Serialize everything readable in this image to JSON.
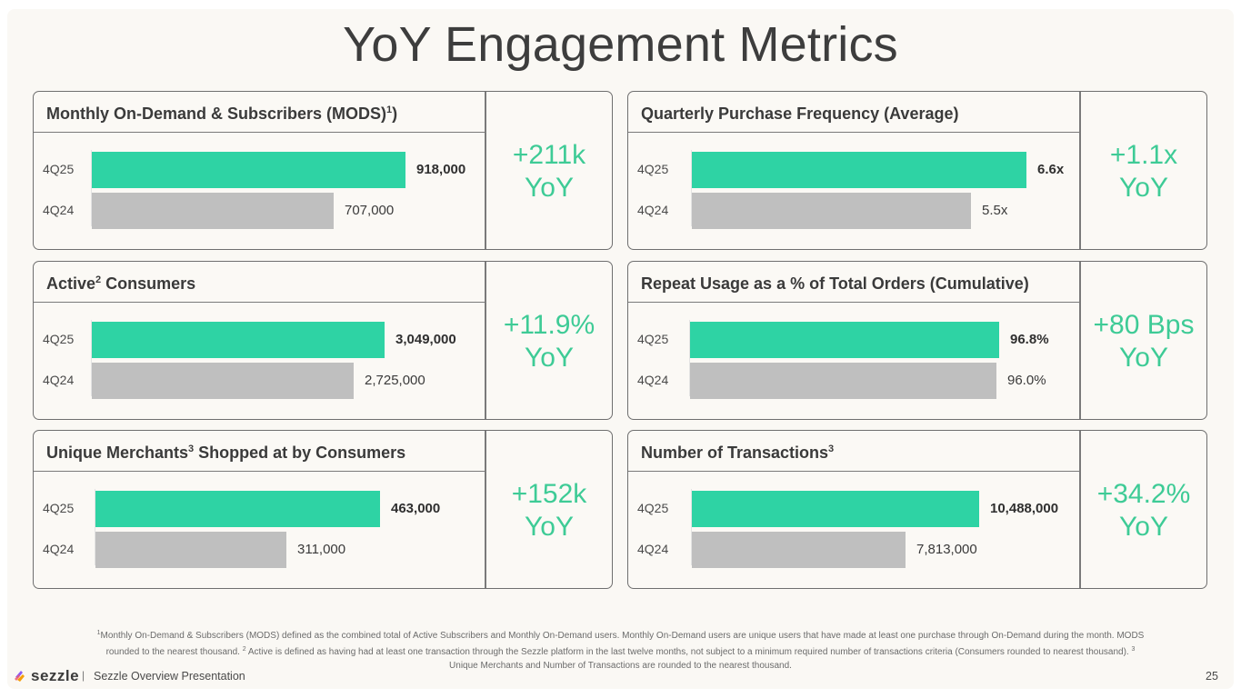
{
  "title": "YoY Engagement Metrics",
  "colors": {
    "current": "#2ed3a4",
    "previous": "#bfbfbf",
    "yoy": "#3ecb96"
  },
  "chart_data": [
    {
      "type": "bar",
      "title": "Monthly On-Demand & Subscribers (MODS)",
      "title_sup": "1",
      "title_after": ")",
      "categories": [
        "4Q25",
        "4Q24"
      ],
      "values": [
        918000,
        707000
      ],
      "labels": [
        "918,000",
        "707,000"
      ],
      "yoy_line1": "+211k",
      "yoy_line2": "YoY"
    },
    {
      "type": "bar",
      "title": "Quarterly Purchase Frequency (Average)",
      "title_sup": "",
      "title_after": "",
      "categories": [
        "4Q25",
        "4Q24"
      ],
      "values": [
        6.6,
        5.5
      ],
      "labels": [
        "6.6x",
        "5.5x"
      ],
      "yoy_line1": "+1.1x",
      "yoy_line2": "YoY"
    },
    {
      "type": "bar",
      "title": "Active",
      "title_sup": "2",
      "title_after": " Consumers",
      "categories": [
        "4Q25",
        "4Q24"
      ],
      "values": [
        3049000,
        2725000
      ],
      "labels": [
        "3,049,000",
        "2,725,000"
      ],
      "yoy_line1": "+11.9%",
      "yoy_line2": "YoY"
    },
    {
      "type": "bar",
      "title": "Repeat Usage as a % of Total Orders (Cumulative)",
      "title_sup": "",
      "title_after": "",
      "categories": [
        "4Q25",
        "4Q24"
      ],
      "values": [
        96.8,
        96.0
      ],
      "labels": [
        "96.8%",
        "96.0%"
      ],
      "yoy_line1": "+80 Bps",
      "yoy_line2": "YoY"
    },
    {
      "type": "bar",
      "title": "Unique Merchants",
      "title_sup": "3",
      "title_after": " Shopped at by Consumers",
      "categories": [
        "4Q25",
        "4Q24"
      ],
      "values": [
        463000,
        311000
      ],
      "labels": [
        "463,000",
        "311,000"
      ],
      "yoy_line1": "+152k",
      "yoy_line2": "YoY"
    },
    {
      "type": "bar",
      "title": "Number of Transactions",
      "title_sup": "3",
      "title_after": "",
      "categories": [
        "4Q25",
        "4Q24"
      ],
      "values": [
        10488000,
        7813000
      ],
      "labels": [
        "10,488,000",
        "7,813,000"
      ],
      "yoy_line1": "+34.2%",
      "yoy_line2": "YoY"
    }
  ],
  "footnote": {
    "sup1": "1",
    "part1": "Monthly On-Demand & Subscribers (MODS) defined as the combined total of Active Subscribers and Monthly On-Demand users. Monthly On-Demand users are unique users that have made at least one purchase through On-Demand during the month. MODS rounded to the nearest thousand. ",
    "sup2": "2",
    "part2": " Active is defined as having had at least one transaction through the Sezzle platform in the last twelve months, not subject to a minimum required number of transactions criteria (Consumers rounded to nearest thousand). ",
    "sup3": "3",
    "part3": " Unique Merchants and Number of Transactions are rounded to the nearest thousand."
  },
  "footer": {
    "brand": "sezzle",
    "separator": "|",
    "text": "Sezzle Overview Presentation",
    "page_number": "25"
  }
}
